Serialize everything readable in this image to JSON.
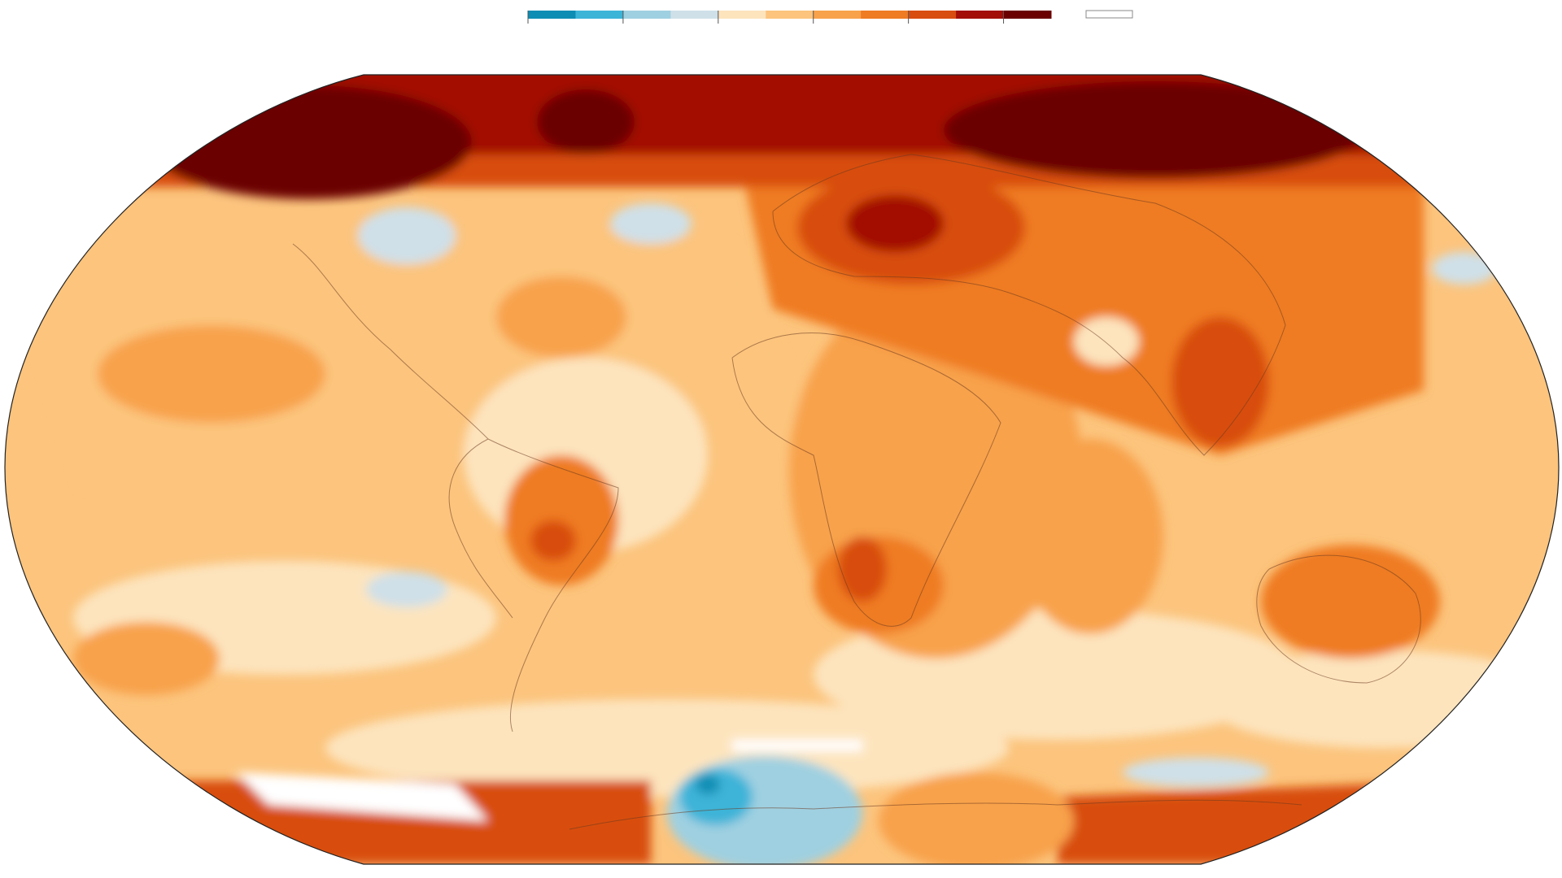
{
  "legend": {
    "colors": [
      "#0d8db4",
      "#3cb4d8",
      "#9fd0e1",
      "#cfe0e8",
      "#fde4bd",
      "#fcc47d",
      "#f8a24b",
      "#ef7b23",
      "#d84d10",
      "#a30e06",
      "#6a0000"
    ],
    "no_data_color": "#ffffff"
  }
}
